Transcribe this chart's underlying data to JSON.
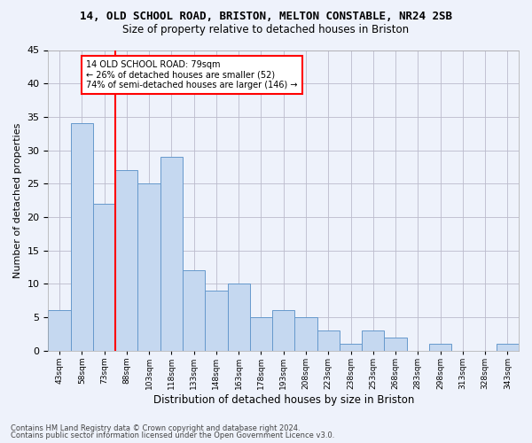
{
  "title1": "14, OLD SCHOOL ROAD, BRISTON, MELTON CONSTABLE, NR24 2SB",
  "title2": "Size of property relative to detached houses in Briston",
  "xlabel": "Distribution of detached houses by size in Briston",
  "ylabel": "Number of detached properties",
  "categories": [
    "43sqm",
    "58sqm",
    "73sqm",
    "88sqm",
    "103sqm",
    "118sqm",
    "133sqm",
    "148sqm",
    "163sqm",
    "178sqm",
    "193sqm",
    "208sqm",
    "223sqm",
    "238sqm",
    "253sqm",
    "268sqm",
    "283sqm",
    "298sqm",
    "313sqm",
    "328sqm",
    "343sqm"
  ],
  "values": [
    6,
    34,
    22,
    27,
    25,
    29,
    12,
    9,
    10,
    5,
    6,
    5,
    3,
    1,
    3,
    2,
    0,
    1,
    0,
    0,
    1
  ],
  "bar_color": "#c5d8f0",
  "bar_edge_color": "#6699cc",
  "vline_color": "red",
  "annotation_text": "14 OLD SCHOOL ROAD: 79sqm\n← 26% of detached houses are smaller (52)\n74% of semi-detached houses are larger (146) →",
  "annotation_box_color": "white",
  "annotation_box_edge_color": "red",
  "ylim": [
    0,
    45
  ],
  "yticks": [
    0,
    5,
    10,
    15,
    20,
    25,
    30,
    35,
    40,
    45
  ],
  "footer1": "Contains HM Land Registry data © Crown copyright and database right 2024.",
  "footer2": "Contains public sector information licensed under the Open Government Licence v3.0.",
  "background_color": "#eef2fb",
  "grid_color": "#bbbbcc"
}
